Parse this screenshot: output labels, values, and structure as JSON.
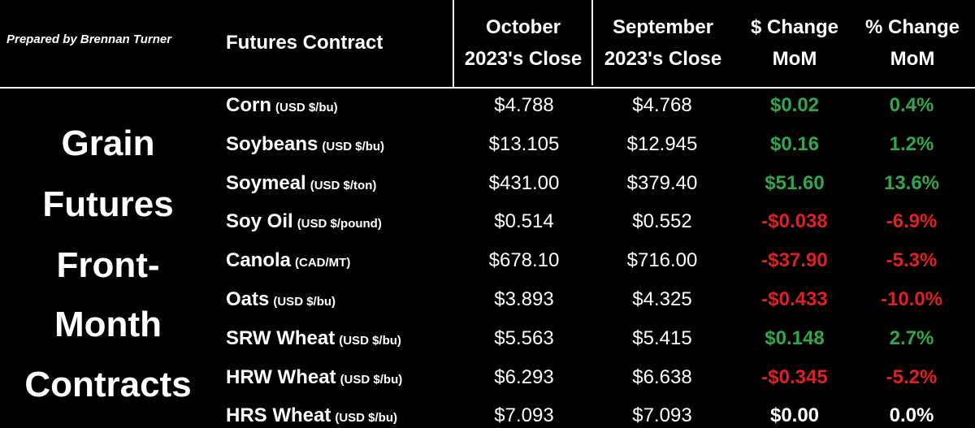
{
  "header": {
    "credit": "Prepared by Brennan Turner",
    "columns": [
      {
        "lines": [
          "Futures Contract"
        ]
      },
      {
        "lines": [
          "October",
          "2023's Close"
        ]
      },
      {
        "lines": [
          "September",
          "2023's Close"
        ]
      },
      {
        "lines": [
          "$ Change",
          "MoM"
        ]
      },
      {
        "lines": [
          "% Change",
          "MoM"
        ]
      }
    ]
  },
  "side_title": {
    "lines": [
      "Grain",
      "Futures",
      "Front-",
      "Month",
      "Contracts"
    ]
  },
  "table": {
    "rows": [
      {
        "name": "Corn",
        "unit": "(USD $/bu)",
        "october": "$4.788",
        "september": "$4.768",
        "change": "$0.02",
        "pct": "0.4%",
        "color": "#2ea84a"
      },
      {
        "name": "Soybeans",
        "unit": "(USD $/bu)",
        "october": "$13.105",
        "september": "$12.945",
        "change": "$0.16",
        "pct": "1.2%",
        "color": "#2ea84a"
      },
      {
        "name": "Soymeal",
        "unit": "(USD $/ton)",
        "october": "$431.00",
        "september": "$379.40",
        "change": "$51.60",
        "pct": "13.6%",
        "color": "#2ea84a"
      },
      {
        "name": "Soy Oil",
        "unit": "(USD $/pound)",
        "october": "$0.514",
        "september": "$0.552",
        "change": "-$0.038",
        "pct": "-6.9%",
        "color": "#e02020"
      },
      {
        "name": "Canola",
        "unit": "(CAD/MT)",
        "october": "$678.10",
        "september": "$716.00",
        "change": "-$37.90",
        "pct": "-5.3%",
        "color": "#e02020"
      },
      {
        "name": "Oats",
        "unit": "(USD $/bu)",
        "october": "$3.893",
        "september": "$4.325",
        "change": "-$0.433",
        "pct": "-10.0%",
        "color": "#e02020"
      },
      {
        "name": "SRW Wheat",
        "unit": "(USD $/bu)",
        "october": "$5.563",
        "september": "$5.415",
        "change": "$0.148",
        "pct": "2.7%",
        "color": "#2ea84a"
      },
      {
        "name": "HRW Wheat",
        "unit": "(USD $/bu)",
        "october": "$6.293",
        "september": "$6.638",
        "change": "-$0.345",
        "pct": "-5.2%",
        "color": "#e02020"
      },
      {
        "name": "HRS Wheat",
        "unit": "(USD $/bu)",
        "october": "$7.093",
        "september": "$7.093",
        "change": "$0.00",
        "pct": "0.0%",
        "color": "#ffffff"
      }
    ]
  }
}
